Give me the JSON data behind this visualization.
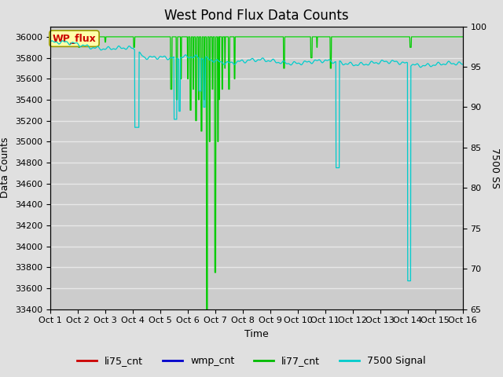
{
  "title": "West Pond Flux Data Counts",
  "xlabel": "Time",
  "ylabel_left": "Data Counts",
  "ylabel_right": "7500 SS",
  "xlim": [
    0,
    15
  ],
  "ylim_left": [
    33400,
    36100
  ],
  "ylim_right": [
    65,
    100
  ],
  "xtick_labels": [
    "Oct 1",
    "Oct 2",
    "Oct 3",
    "Oct 4",
    "Oct 5",
    "Oct 6",
    "Oct 7",
    "Oct 8",
    "Oct 9",
    "Oct 10",
    "Oct 11",
    "Oct 12",
    "Oct 13",
    "Oct 14",
    "Oct 15",
    "Oct 16"
  ],
  "ytick_left": [
    33400,
    33600,
    33800,
    34000,
    34200,
    34400,
    34600,
    34800,
    35000,
    35200,
    35400,
    35600,
    35800,
    36000
  ],
  "ytick_right": [
    65,
    70,
    75,
    80,
    85,
    90,
    95,
    100
  ],
  "fig_bg_color": "#e0e0e0",
  "plot_bg_color": "#cccccc",
  "grid_color": "#e8e8e8",
  "legend_items": [
    "li75_cnt",
    "wmp_cnt",
    "li77_cnt",
    "7500 Signal"
  ],
  "legend_colors": [
    "#cc0000",
    "#0000cc",
    "#00bb00",
    "#00cccc"
  ],
  "wp_flux_box_facecolor": "#ffffaa",
  "wp_flux_box_edgecolor": "#999900",
  "wp_flux_text_color": "#cc0000",
  "line_li77_color": "#00cc00",
  "line_7500_color": "#00cccc",
  "title_fontsize": 12,
  "axis_label_fontsize": 9,
  "tick_fontsize": 8,
  "legend_fontsize": 9
}
